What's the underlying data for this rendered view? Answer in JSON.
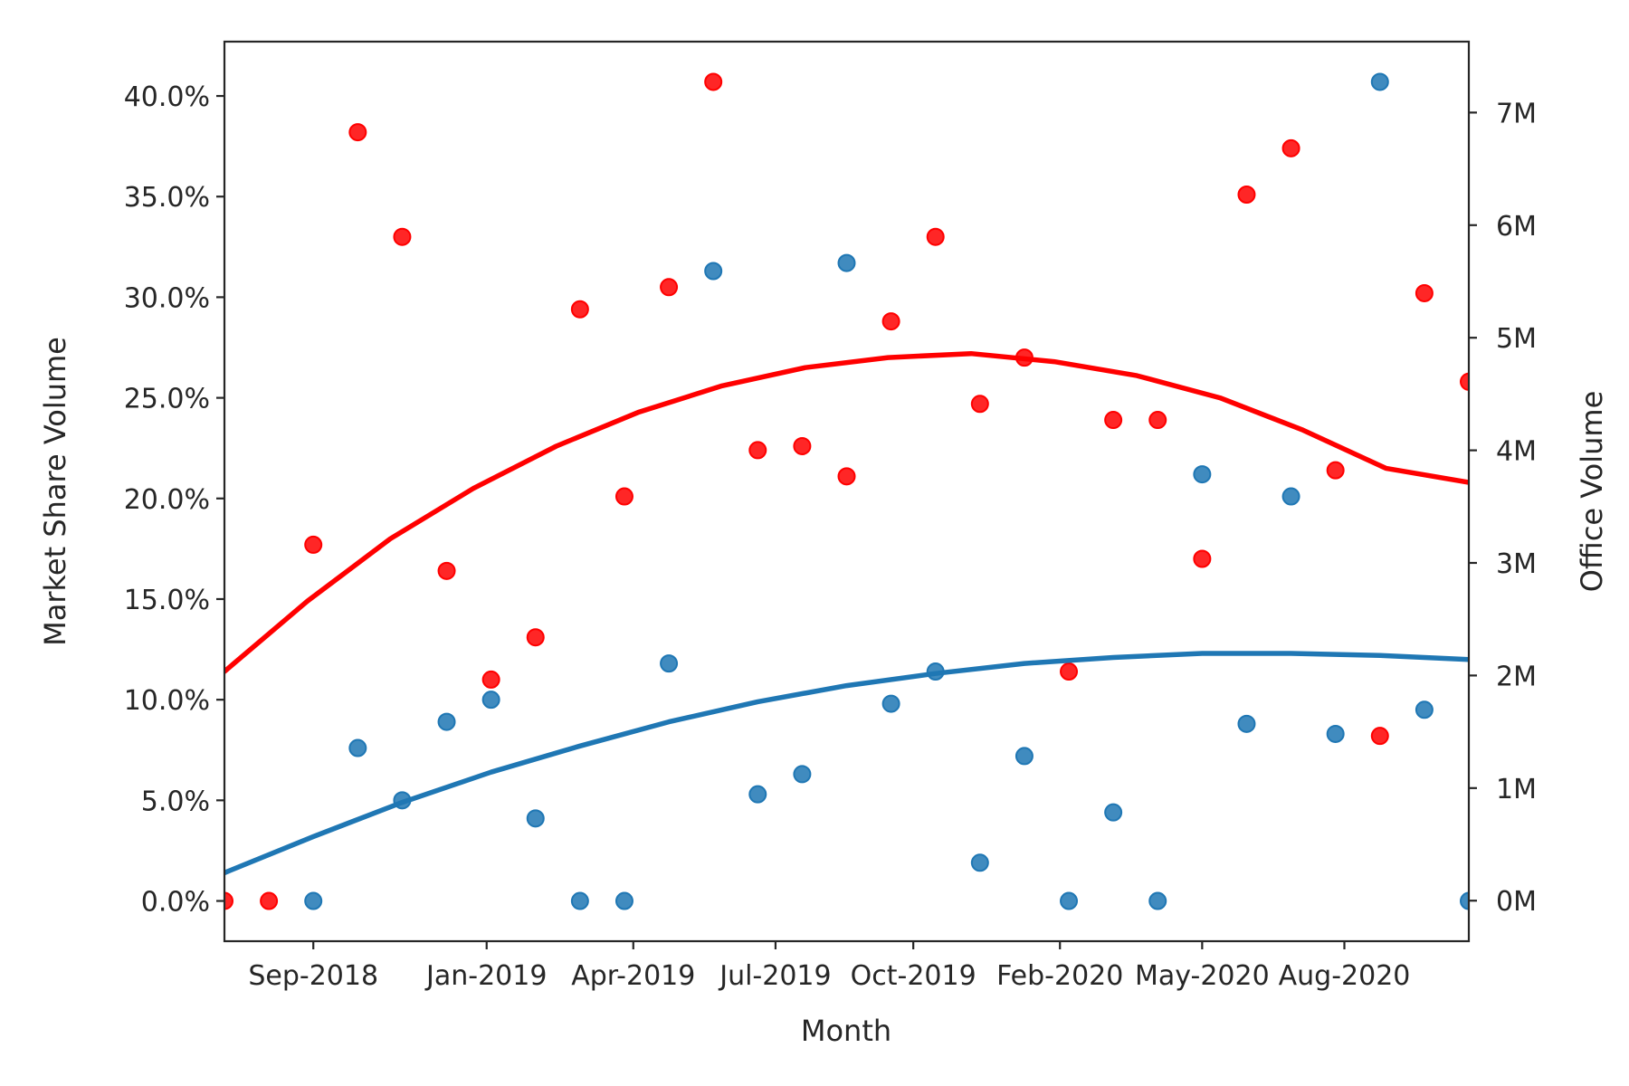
{
  "chart_data": {
    "type": "scatter",
    "xlabel": "Month",
    "ylabel_left": "Market Share Volume",
    "ylabel_right": "Office Volume",
    "x_tick_labels": [
      "Sep-2018",
      "Jan-2019",
      "Apr-2019",
      "Jul-2019",
      "Oct-2019",
      "Feb-2020",
      "May-2020",
      "Aug-2020"
    ],
    "x_months": [
      "Jul-2018",
      "Aug-2018",
      "Sep-2018",
      "Oct-2018",
      "Nov-2018",
      "Dec-2018",
      "Jan-2019",
      "Feb-2019",
      "Mar-2019",
      "Apr-2019",
      "May-2019",
      "Jun-2019",
      "Jul-2019",
      "Aug-2019",
      "Sep-2019",
      "Oct-2019",
      "Nov-2019",
      "Dec-2019",
      "Jan-2020",
      "Feb-2020",
      "Mar-2020",
      "Apr-2020",
      "May-2020",
      "Jun-2020",
      "Jul-2020",
      "Aug-2020",
      "Sep-2020",
      "Oct-2020",
      "Nov-2020"
    ],
    "x_tick_indices": [
      2,
      5.9,
      9.2,
      12.4,
      15.5,
      18.8,
      22,
      25.2
    ],
    "y_left": {
      "ylim": [
        -2.0,
        42.7
      ],
      "ticks": [
        0,
        5,
        10,
        15,
        20,
        25,
        30,
        35,
        40
      ],
      "tick_labels": [
        "0.0%",
        "5.0%",
        "10.0%",
        "15.0%",
        "20.0%",
        "25.0%",
        "30.0%",
        "35.0%",
        "40.0%"
      ]
    },
    "y_right": {
      "ylim": [
        -0.36,
        7.63
      ],
      "ticks": [
        0,
        1,
        2,
        3,
        4,
        5,
        6,
        7
      ],
      "tick_labels": [
        "0M",
        "1M",
        "2M",
        "3M",
        "4M",
        "5M",
        "6M",
        "7M"
      ]
    },
    "grid": false,
    "series": [
      {
        "axis": "left",
        "color": "#ff0000",
        "values": [
          0.0,
          0.0,
          17.7,
          38.2,
          33.0,
          16.4,
          11.0,
          13.1,
          29.4,
          20.1,
          30.5,
          40.7,
          22.4,
          22.6,
          21.1,
          28.8,
          33.0,
          24.7,
          27.0,
          11.4,
          23.9,
          23.9,
          17.0,
          35.1,
          37.4,
          21.4,
          8.2,
          30.2,
          25.8
        ],
        "trend": [
          11.4,
          14.9,
          18.0,
          20.5,
          22.6,
          24.3,
          25.6,
          26.5,
          27.0,
          27.2,
          26.8,
          26.1,
          25.0,
          23.4,
          21.5,
          20.8
        ]
      },
      {
        "axis": "left",
        "color": "#1f77b4",
        "values": [
          null,
          null,
          0.0,
          7.6,
          5.0,
          8.9,
          10.0,
          4.1,
          0.0,
          0.0,
          11.8,
          31.3,
          5.3,
          6.3,
          31.7,
          9.8,
          11.4,
          1.9,
          7.2,
          0.0,
          4.4,
          0.0,
          21.2,
          8.8,
          20.1,
          8.3,
          40.7,
          9.5,
          0.0
        ],
        "trend": [
          1.4,
          3.2,
          4.9,
          6.4,
          7.7,
          8.9,
          9.9,
          10.7,
          11.3,
          11.8,
          12.1,
          12.3,
          12.3,
          12.2,
          12.0
        ]
      }
    ]
  }
}
